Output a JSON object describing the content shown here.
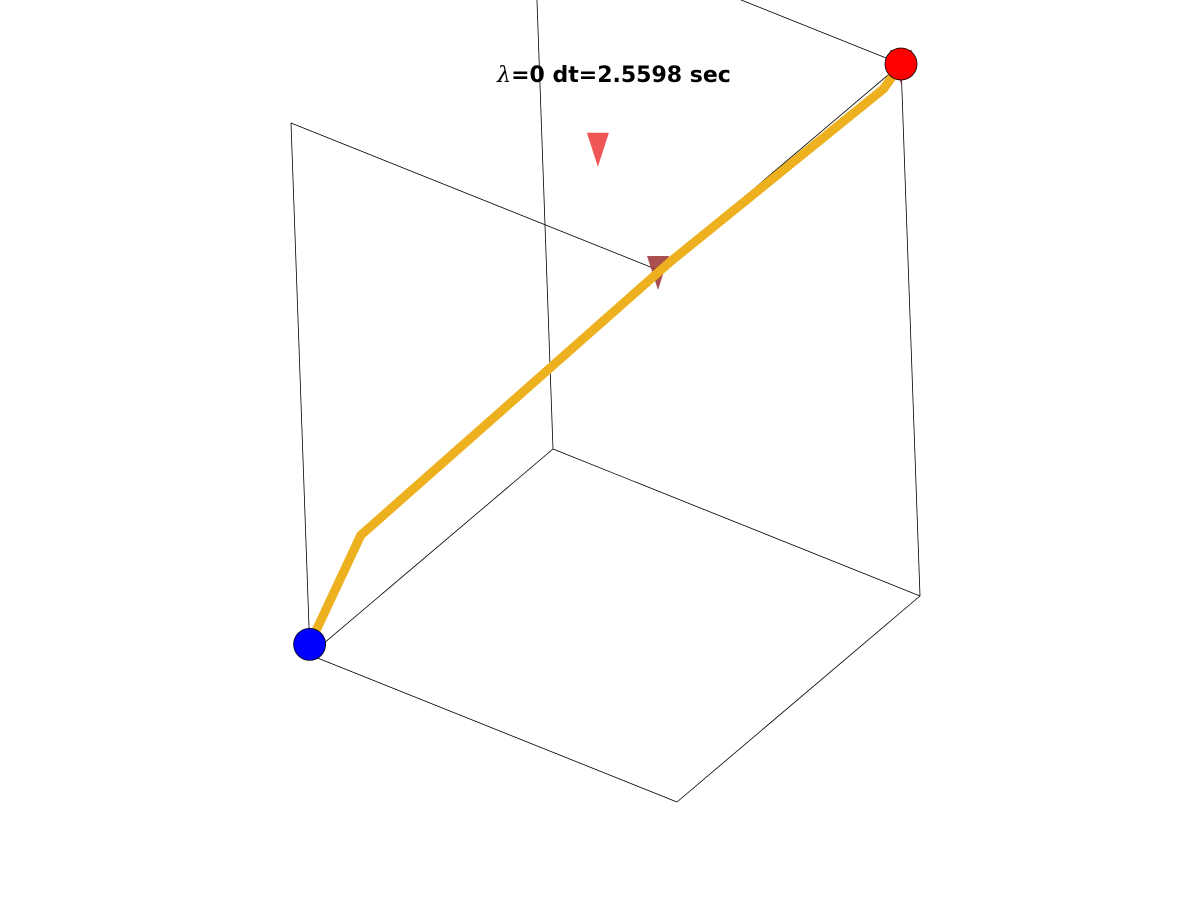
{
  "chart_data": {
    "type": "line3d",
    "title": {
      "symbol": "λ",
      "text": "=0 dt=2.5598 sec"
    },
    "xlabel": "",
    "ylabel": "",
    "zlabel": "",
    "grid": false,
    "axes_box": true,
    "colors": {
      "path": "#EDB120",
      "start_marker": "#0000FF",
      "end_marker": "#FF0000",
      "arrow_mid": "#EE4444",
      "arrow_dark": "#A03C3C",
      "box": "#000000"
    },
    "series": [
      {
        "points": [
          [
            0.0,
            1.0,
            0.02
          ],
          [
            0.22,
            1.0,
            0.14
          ],
          [
            0.7,
            0.45,
            0.62
          ],
          [
            1.0,
            0.05,
            0.94
          ],
          [
            1.0,
            0.0,
            1.0
          ]
        ]
      }
    ],
    "markers": [
      {
        "role": "start",
        "point": [
          0.0,
          1.0,
          0.02
        ],
        "color": "#0000FF"
      },
      {
        "role": "end",
        "point": [
          1.0,
          0.0,
          1.0
        ],
        "color": "#FF0000"
      }
    ],
    "arrows": [
      {
        "point": [
          0.5,
          0.5,
          0.9
        ],
        "direction": [
          0,
          0,
          -1
        ],
        "color": "#EE4444"
      },
      {
        "point": [
          0.0,
          0.0,
          1.0
        ],
        "direction": [
          0,
          0,
          -1
        ],
        "color": "#A03C3C"
      },
      {
        "point": [
          1.0,
          0.0,
          1.0
        ],
        "direction": [
          0,
          0,
          -1
        ],
        "color": "#A03C3C"
      }
    ],
    "xlim": [
      0,
      1
    ],
    "ylim": [
      0,
      1
    ],
    "zlim": [
      0,
      1
    ]
  }
}
